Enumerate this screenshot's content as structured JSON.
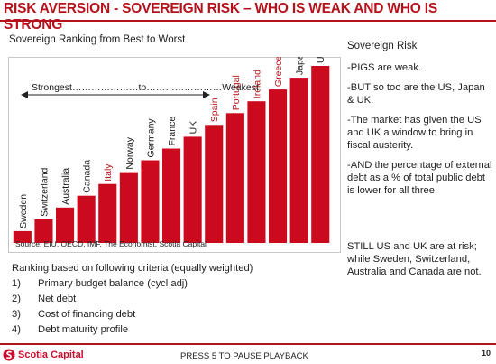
{
  "header": {
    "title": "RISK AVERSION - SOVEREIGN RISK – WHO IS WEAK AND WHO IS STRONG"
  },
  "chart_data": {
    "type": "bar",
    "title": "Sovereign Ranking from Best to Worst",
    "categories": [
      "Sweden",
      "Switzerland",
      "Australia",
      "Canada",
      "Italy",
      "Norway",
      "Germany",
      "France",
      "UK",
      "Spain",
      "Portugal",
      "Ireland",
      "Greece",
      "Japan",
      "US"
    ],
    "values": [
      1,
      2,
      3,
      4,
      5,
      6,
      7,
      8,
      9,
      10,
      11,
      12,
      13,
      14,
      15
    ],
    "highlighted": [
      "Italy",
      "Spain",
      "Portugal",
      "Ireland",
      "Greece"
    ],
    "annotation": "Strongest…………………to……………………Weakest",
    "source": "Source: EIU, OECD, IMF, The Economist, Scotia Capital",
    "colors": {
      "bar": "#cc0a1e",
      "highlight_label": "#b5121b",
      "label": "#1a1a1a"
    },
    "ylim": [
      0,
      15
    ]
  },
  "sidebar": {
    "heading": "Sovereign Risk",
    "points": [
      "-PIGS are weak.",
      "-BUT so too are the US, Japan & UK.",
      "-The market has given the US and UK a window to bring in fiscal austerity.",
      "-AND the percentage of external debt as a % of total public debt is lower for all three."
    ],
    "risk_note": "STILL US and UK are at risk; while Sweden, Switzerland, Australia and Canada are not."
  },
  "criteria": {
    "heading": "Ranking based on following criteria (equally weighted)",
    "items": [
      {
        "num": "1)",
        "text": "Primary budget balance (cycl adj)"
      },
      {
        "num": "2)",
        "text": "Net debt"
      },
      {
        "num": "3)",
        "text": "Cost of financing debt"
      },
      {
        "num": "4)",
        "text": "Debt maturity profile"
      }
    ]
  },
  "footer": {
    "logo_text": "Scotia Capital",
    "playback": "PRESS 5 TO PAUSE PLAYBACK",
    "page": "10"
  }
}
